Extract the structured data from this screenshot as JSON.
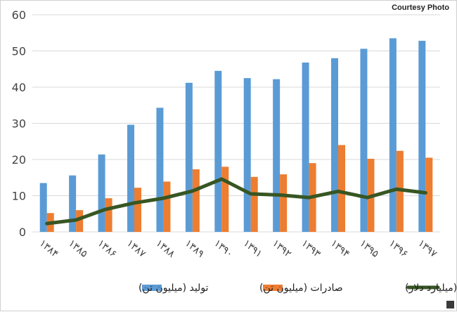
{
  "credit": "Courtesy Photo",
  "chart_data": {
    "type": "bar",
    "categories": [
      "۱۳۸۴",
      "۱۳۸۵",
      "۱۳۸۶",
      "۱۳۸۷",
      "۱۳۸۸",
      "۱۳۸۹",
      "۱۳۹۰",
      "۱۳۹۱",
      "۱۳۹۲",
      "۱۳۹۳",
      "۱۳۹۴",
      "۱۳۹۵",
      "۱۳۹۶",
      "۱۳۹۷"
    ],
    "series": [
      {
        "name": "تولید (میلیون تن)",
        "type": "bar",
        "color": "#5b9bd5",
        "values": [
          13.5,
          15.6,
          21.4,
          29.6,
          34.3,
          41.2,
          44.5,
          42.5,
          42.2,
          46.8,
          48.0,
          50.6,
          53.5,
          52.8
        ]
      },
      {
        "name": "صادرات (میلیون تن)",
        "type": "bar",
        "color": "#ed7d31",
        "values": [
          5.2,
          6.0,
          9.3,
          12.2,
          13.9,
          17.3,
          18.0,
          15.2,
          15.9,
          19.0,
          24.0,
          20.2,
          22.4,
          20.5
        ]
      },
      {
        "name": "صادرات (میلیارد دلار)",
        "type": "line",
        "color": "#375623",
        "values": [
          2.3,
          3.3,
          6.2,
          8.0,
          9.3,
          11.3,
          14.6,
          10.5,
          10.2,
          9.5,
          11.2,
          9.5,
          11.8,
          10.8
        ]
      }
    ],
    "yticks": [
      "0",
      "10",
      "20",
      "30",
      "40",
      "50",
      "60"
    ],
    "ylim": [
      0,
      60
    ],
    "grid": true,
    "legend": "bottom"
  }
}
